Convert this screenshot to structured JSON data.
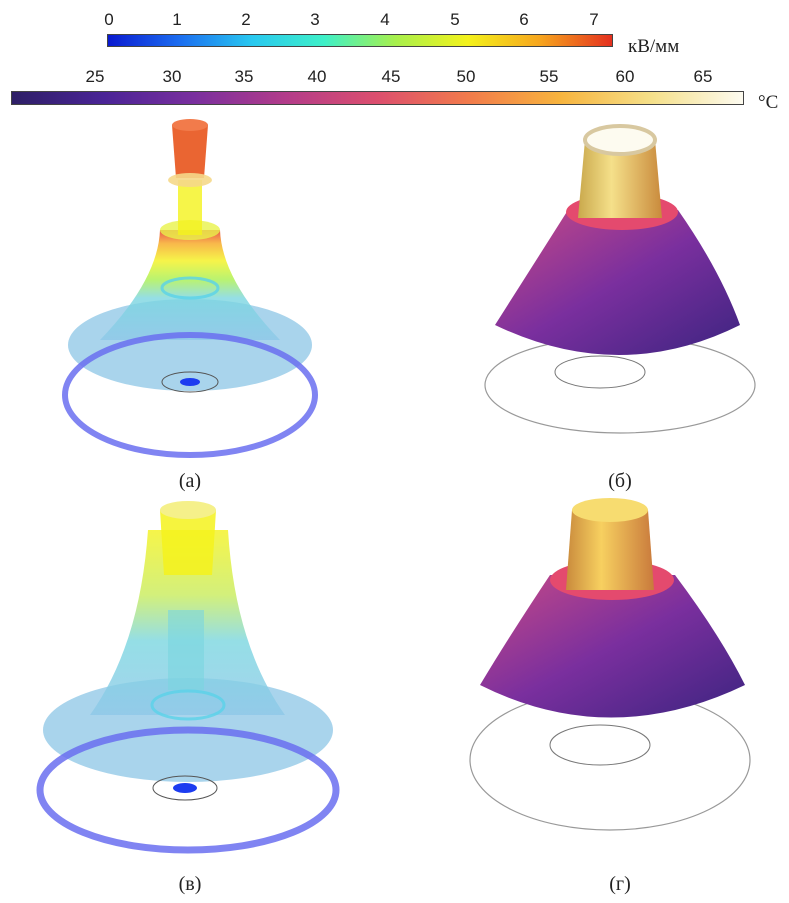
{
  "field_colorbar": {
    "ticks": [
      "0",
      "1",
      "2",
      "3",
      "4",
      "5",
      "6",
      "7"
    ],
    "unit": "кВ/мм",
    "gradient": [
      "#0a1ad0",
      "#1c6ef0",
      "#29c8f0",
      "#3ef0c8",
      "#a8f04c",
      "#f4f21c",
      "#f6a51e",
      "#e4301f"
    ]
  },
  "temp_colorbar": {
    "ticks": [
      "25",
      "30",
      "35",
      "40",
      "45",
      "50",
      "55",
      "60",
      "65"
    ],
    "unit": "°C",
    "gradient": [
      "#2e1f66",
      "#4a2496",
      "#7a2f9e",
      "#b33c8a",
      "#dc4f6e",
      "#f27b4b",
      "#f7b43e",
      "#f5e08a",
      "#fdfbf0"
    ]
  },
  "panels": {
    "a": "(а)",
    "b": "(б)",
    "c": "(в)",
    "d": "(г)"
  }
}
